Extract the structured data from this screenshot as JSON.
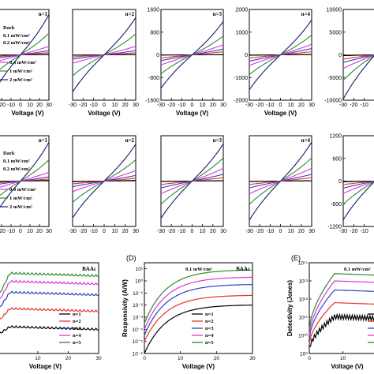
{
  "palette": {
    "dark": "#000000",
    "p01": "#e8342a",
    "p02": "#2f43c2",
    "p04": "#d838d8",
    "p1": "#2d8c2d",
    "p2": "#1a1a6e"
  },
  "legend_iv": {
    "dark": "Dark",
    "p01": "0.1 mW/cm²",
    "p02": "0.2 mW/cm²",
    "p04": "0.4 mW/cm²",
    "p1": "1 mW/cm²",
    "p2": "2 mW/cm²"
  },
  "chart_data": [
    {
      "type": "line",
      "row": 1,
      "col": 1,
      "n_label": "n=1",
      "xlabel": "Voltage (V)",
      "ylabel": "",
      "x": [
        -30,
        30
      ],
      "xlim": [
        -30,
        30
      ],
      "ylim": [
        -150,
        150
      ],
      "xticks": [
        -30,
        -20,
        -10,
        0,
        10,
        20,
        30
      ],
      "xtick_labels": [
        "-30",
        "-20",
        "-10",
        "0",
        "10",
        "20",
        "30"
      ],
      "yticks": [],
      "ytick_labels": [],
      "series": [
        {
          "name": "Dark",
          "values": [
            -2,
            2
          ]
        },
        {
          "name": "0.1 mW/cm²",
          "values": [
            -8,
            8
          ]
        },
        {
          "name": "0.2 mW/cm²",
          "values": [
            -15,
            15
          ]
        },
        {
          "name": "0.4 mW/cm²",
          "values": [
            -30,
            30
          ]
        },
        {
          "name": "1 mW/cm²",
          "values": [
            -70,
            70
          ]
        },
        {
          "name": "2 mW/cm²",
          "values": [
            -130,
            130
          ]
        }
      ]
    },
    {
      "type": "line",
      "row": 1,
      "col": 2,
      "n_label": "n=2",
      "xlabel": "Voltage (V)",
      "ylabel": "",
      "x": [
        -30,
        30
      ],
      "xlim": [
        -30,
        30
      ],
      "ylim": [
        -200,
        200
      ],
      "xticks": [
        -30,
        -20,
        -10,
        0,
        10,
        20,
        30
      ],
      "xtick_labels": [
        "-30",
        "-20",
        "-10",
        "0",
        "10",
        "20",
        "30"
      ],
      "yticks": [],
      "ytick_labels": [],
      "series": [
        {
          "name": "Dark",
          "values": [
            -2,
            2
          ]
        },
        {
          "name": "0.1 mW/cm²",
          "values": [
            -10,
            10
          ]
        },
        {
          "name": "0.2 mW/cm²",
          "values": [
            -20,
            20
          ]
        },
        {
          "name": "0.4 mW/cm²",
          "values": [
            -40,
            40
          ]
        },
        {
          "name": "1 mW/cm²",
          "values": [
            -90,
            90
          ]
        },
        {
          "name": "2 mW/cm²",
          "values": [
            -160,
            160
          ]
        }
      ]
    },
    {
      "type": "line",
      "row": 1,
      "col": 3,
      "n_label": "n=3",
      "xlabel": "Voltage (V)",
      "ylabel": "",
      "x": [
        -30,
        30
      ],
      "xlim": [
        -30,
        30
      ],
      "ylim": [
        -1600,
        1600
      ],
      "xticks": [
        -30,
        -20,
        -10,
        0,
        10,
        20,
        30
      ],
      "xtick_labels": [
        "-30",
        "-20",
        "-10",
        "0",
        "10",
        "20",
        "30"
      ],
      "yticks": [
        -1600,
        -800,
        0,
        800,
        1600
      ],
      "ytick_labels": [
        "-1600",
        "-800",
        "0",
        "800",
        "1600"
      ],
      "series": [
        {
          "name": "Dark",
          "values": [
            -10,
            10
          ]
        },
        {
          "name": "0.1 mW/cm²",
          "values": [
            -120,
            120
          ]
        },
        {
          "name": "0.2 mW/cm²",
          "values": [
            -220,
            220
          ]
        },
        {
          "name": "0.4 mW/cm²",
          "values": [
            -380,
            380
          ]
        },
        {
          "name": "1 mW/cm²",
          "values": [
            -650,
            650
          ]
        },
        {
          "name": "2 mW/cm²",
          "values": [
            -1150,
            1150
          ]
        }
      ]
    },
    {
      "type": "line",
      "row": 1,
      "col": 4,
      "n_label": "n=4",
      "xlabel": "Voltage (V)",
      "ylabel": "",
      "x": [
        -30,
        30
      ],
      "xlim": [
        -30,
        30
      ],
      "ylim": [
        -2000,
        2000
      ],
      "xticks": [
        -30,
        -20,
        -10,
        0,
        10,
        20,
        30
      ],
      "xtick_labels": [
        "-30",
        "-20",
        "-10",
        "0",
        "10",
        "20",
        "30"
      ],
      "yticks": [
        -2000,
        -1000,
        0,
        1000,
        2000
      ],
      "ytick_labels": [
        "-2000",
        "-1000",
        "0",
        "1000",
        "2000"
      ],
      "series": [
        {
          "name": "Dark",
          "values": [
            -20,
            20
          ]
        },
        {
          "name": "0.1 mW/cm²",
          "values": [
            -150,
            150
          ]
        },
        {
          "name": "0.2 mW/cm²",
          "values": [
            -300,
            300
          ]
        },
        {
          "name": "0.4 mW/cm²",
          "values": [
            -500,
            500
          ]
        },
        {
          "name": "1 mW/cm²",
          "values": [
            -850,
            850
          ]
        },
        {
          "name": "2 mW/cm²",
          "values": [
            -1500,
            1500
          ]
        }
      ]
    },
    {
      "type": "line",
      "row": 1,
      "col": 5,
      "n_label": "",
      "xlabel": "",
      "ylabel": "",
      "x": [
        -30,
        30
      ],
      "xlim": [
        -30,
        30
      ],
      "ylim": [
        -10000,
        10000
      ],
      "xticks": [
        -30,
        -20,
        -10,
        0
      ],
      "xtick_labels": [
        "-30",
        "-20",
        "-10",
        "0"
      ],
      "yticks": [
        -10000,
        -5000,
        0,
        5000,
        10000
      ],
      "ytick_labels": [
        "-10000",
        "-5000",
        "0",
        "5000",
        "10000"
      ],
      "series": [
        {
          "name": "Dark",
          "values": [
            -200,
            200
          ]
        },
        {
          "name": "0.1 mW/cm²",
          "values": [
            -1000,
            1000
          ]
        },
        {
          "name": "0.2 mW/cm²",
          "values": [
            -1800,
            1800
          ]
        },
        {
          "name": "0.4 mW/cm²",
          "values": [
            -3200,
            3200
          ]
        },
        {
          "name": "1 mW/cm²",
          "values": [
            -5500,
            5500
          ]
        },
        {
          "name": "2 mW/cm²",
          "values": [
            -9500,
            9500
          ]
        }
      ]
    },
    {
      "type": "line",
      "row": 2,
      "col": 1,
      "n_label": "n=1",
      "xlabel": "",
      "ylabel": "",
      "x": [
        -30,
        30
      ],
      "xlim": [
        -30,
        30
      ],
      "ylim": [
        -120,
        120
      ],
      "xticks": [
        -30,
        -20,
        -10,
        0,
        10,
        20,
        30
      ],
      "xtick_labels": [
        "-30",
        "-20",
        "-10",
        "0",
        "10",
        "20",
        "30"
      ],
      "yticks": [],
      "ytick_labels": [],
      "series": [
        {
          "name": "Dark",
          "values": [
            -2,
            2
          ]
        },
        {
          "name": "0.1 mW/cm²",
          "values": [
            -6,
            6
          ]
        },
        {
          "name": "0.2 mW/cm²",
          "values": [
            -12,
            12
          ]
        },
        {
          "name": "0.4 mW/cm²",
          "values": [
            -25,
            25
          ]
        },
        {
          "name": "1 mW/cm²",
          "values": [
            -55,
            55
          ]
        },
        {
          "name": "2 mW/cm²",
          "values": [
            -100,
            100
          ]
        }
      ]
    },
    {
      "type": "line",
      "row": 2,
      "col": 2,
      "n_label": "n=2",
      "xlabel": "",
      "ylabel": "",
      "x": [
        -30,
        30
      ],
      "xlim": [
        -30,
        30
      ],
      "ylim": [
        -120,
        120
      ],
      "xticks": [
        -30,
        -20,
        -10,
        0,
        10,
        20,
        30
      ],
      "xtick_labels": [
        "-30",
        "-20",
        "-10",
        "0",
        "10",
        "20",
        "30"
      ],
      "yticks": [],
      "ytick_labels": [],
      "series": [
        {
          "name": "Dark",
          "values": [
            -2,
            2
          ]
        },
        {
          "name": "0.1 mW/cm²",
          "values": [
            -8,
            8
          ]
        },
        {
          "name": "0.2 mW/cm²",
          "values": [
            -16,
            16
          ]
        },
        {
          "name": "0.4 mW/cm²",
          "values": [
            -30,
            30
          ]
        },
        {
          "name": "1 mW/cm²",
          "values": [
            -55,
            55
          ]
        },
        {
          "name": "2 mW/cm²",
          "values": [
            -95,
            95
          ]
        }
      ]
    },
    {
      "type": "line",
      "row": 2,
      "col": 3,
      "n_label": "n=3",
      "xlabel": "",
      "ylabel": "",
      "x": [
        -30,
        30
      ],
      "xlim": [
        -30,
        30
      ],
      "ylim": [
        -500,
        500
      ],
      "xticks": [
        -30,
        -20,
        -10,
        0,
        10,
        20,
        30
      ],
      "xtick_labels": [
        "-30",
        "-20",
        "-10",
        "0",
        "10",
        "20",
        "30"
      ],
      "yticks": [],
      "ytick_labels": [],
      "series": [
        {
          "name": "Dark",
          "values": [
            -5,
            5
          ]
        },
        {
          "name": "0.1 mW/cm²",
          "values": [
            -40,
            40
          ]
        },
        {
          "name": "0.2 mW/cm²",
          "values": [
            -80,
            80
          ]
        },
        {
          "name": "0.4 mW/cm²",
          "values": [
            -150,
            150
          ]
        },
        {
          "name": "1 mW/cm²",
          "values": [
            -250,
            250
          ]
        },
        {
          "name": "2 mW/cm²",
          "values": [
            -400,
            400
          ]
        }
      ]
    },
    {
      "type": "line",
      "row": 2,
      "col": 4,
      "n_label": "n=4",
      "xlabel": "",
      "ylabel": "",
      "x": [
        -30,
        30
      ],
      "xlim": [
        -30,
        30
      ],
      "ylim": [
        -500,
        500
      ],
      "xticks": [
        -30,
        -20,
        -10,
        0,
        10,
        20,
        30
      ],
      "xtick_labels": [
        "-30",
        "-20",
        "-10",
        "0",
        "10",
        "20",
        "30"
      ],
      "yticks": [],
      "ytick_labels": [],
      "series": [
        {
          "name": "Dark",
          "values": [
            -5,
            5
          ]
        },
        {
          "name": "0.1 mW/cm²",
          "values": [
            -40,
            40
          ]
        },
        {
          "name": "0.2 mW/cm²",
          "values": [
            -80,
            80
          ]
        },
        {
          "name": "0.4 mW/cm²",
          "values": [
            -150,
            150
          ]
        },
        {
          "name": "1 mW/cm²",
          "values": [
            -250,
            250
          ]
        },
        {
          "name": "2 mW/cm²",
          "values": [
            -420,
            420
          ]
        }
      ]
    },
    {
      "type": "line",
      "row": 2,
      "col": 5,
      "n_label": "",
      "xlabel": "",
      "ylabel": "",
      "x": [
        -30,
        30
      ],
      "xlim": [
        -30,
        30
      ],
      "ylim": [
        -1200,
        1200
      ],
      "xticks": [
        -30,
        -20,
        -10,
        0
      ],
      "xtick_labels": [
        "-30",
        "-20",
        "-10",
        "0"
      ],
      "yticks": [
        -1200,
        -600,
        0,
        600,
        1200
      ],
      "ytick_labels": [
        "-1200",
        "-600",
        "0",
        "600",
        "1200"
      ],
      "series": [
        {
          "name": "Dark",
          "values": [
            -20,
            20
          ]
        },
        {
          "name": "0.1 mW/cm²",
          "values": [
            -100,
            100
          ]
        },
        {
          "name": "0.2 mW/cm²",
          "values": [
            -200,
            200
          ]
        },
        {
          "name": "0.4 mW/cm²",
          "values": [
            -350,
            350
          ]
        },
        {
          "name": "1 mW/cm²",
          "values": [
            -600,
            600
          ]
        },
        {
          "name": "2 mW/cm²",
          "values": [
            -1000,
            1000
          ]
        }
      ]
    },
    {
      "type": "line",
      "row": 3,
      "col": 1,
      "panel_label": "",
      "compound": "BAAc",
      "power_note": "",
      "xlabel": "Voltage (V)",
      "ylabel": "",
      "xlim": [
        -5,
        30
      ],
      "ylim": [
        0,
        10
      ],
      "xticks": [
        10,
        20,
        30
      ],
      "xtick_labels": [
        "10",
        "20",
        "30"
      ],
      "yticks": [],
      "ytick_labels": [],
      "legend": [
        "n=1",
        "n=2",
        "n=3",
        "n=4",
        "n=5"
      ],
      "series": [
        {
          "name": "n=1",
          "shape": "flat",
          "level": 3.0
        },
        {
          "name": "n=2",
          "shape": "flat",
          "level": 5.0
        },
        {
          "name": "n=3",
          "shape": "flat",
          "level": 6.8
        },
        {
          "name": "n=4",
          "shape": "flat",
          "level": 8.0
        },
        {
          "name": "n=5",
          "shape": "flat",
          "level": 8.9
        }
      ]
    },
    {
      "type": "line",
      "row": 3,
      "col": 2,
      "panel_label": "(D)",
      "compound": "BAAc",
      "power_note": "0.1 mW/cm²",
      "xlabel": "Voltage (V)",
      "ylabel": "Responsivity (A/W)",
      "xlim": [
        0,
        30
      ],
      "ylim": [
        -6,
        1.5
      ],
      "yscale": "log",
      "xticks": [
        0,
        10,
        20,
        30
      ],
      "xtick_labels": [
        "0",
        "10",
        "20",
        "30"
      ],
      "yticks": [
        -6,
        -5,
        -4,
        -3,
        -2,
        -1,
        0,
        1
      ],
      "ytick_labels": [
        "10⁻⁶",
        "10⁻⁵",
        "10⁻⁴",
        "10⁻³",
        "10⁻²",
        "10⁻¹",
        "10⁰",
        "10¹"
      ],
      "legend": [
        "n=1",
        "n=2",
        "n=3",
        "n=4",
        "n=5"
      ],
      "series": [
        {
          "name": "n=1",
          "shape": "rise",
          "start": -6.0,
          "end": -2.0
        },
        {
          "name": "n=2",
          "shape": "rise",
          "start": -5.0,
          "end": -1.2
        },
        {
          "name": "n=3",
          "shape": "rise",
          "start": -4.5,
          "end": -0.3
        },
        {
          "name": "n=4",
          "shape": "rise",
          "start": -4.0,
          "end": 0.3
        },
        {
          "name": "n=5",
          "shape": "rise",
          "start": -3.5,
          "end": 0.9
        }
      ]
    },
    {
      "type": "line",
      "row": 3,
      "col": 3,
      "panel_label": "(E)",
      "compound": "",
      "power_note": "0.1 mW/cm²",
      "xlabel": "Voltage (V)",
      "ylabel": "Detectivity (Jones)",
      "xlim": [
        0,
        30
      ],
      "ylim": [
        9,
        14
      ],
      "yscale": "log",
      "xticks": [
        0,
        10,
        20
      ],
      "xtick_labels": [
        "0",
        "10",
        "20"
      ],
      "yticks": [
        9,
        10,
        11,
        12,
        13,
        14
      ],
      "ytick_labels": [
        "10⁹",
        "10¹⁰",
        "10¹¹",
        "10¹²",
        "10¹³",
        "10¹⁴"
      ],
      "legend": [],
      "series": [
        {
          "name": "n=1",
          "shape": "knee",
          "start": 9.2,
          "end": 11.0
        },
        {
          "name": "n=2",
          "shape": "knee",
          "start": 9.5,
          "end": 11.8
        },
        {
          "name": "n=3",
          "shape": "knee",
          "start": 9.8,
          "end": 12.5
        },
        {
          "name": "n=4",
          "shape": "knee",
          "start": 10.0,
          "end": 13.0
        },
        {
          "name": "n=5",
          "shape": "knee",
          "start": 10.3,
          "end": 13.4
        }
      ]
    }
  ]
}
